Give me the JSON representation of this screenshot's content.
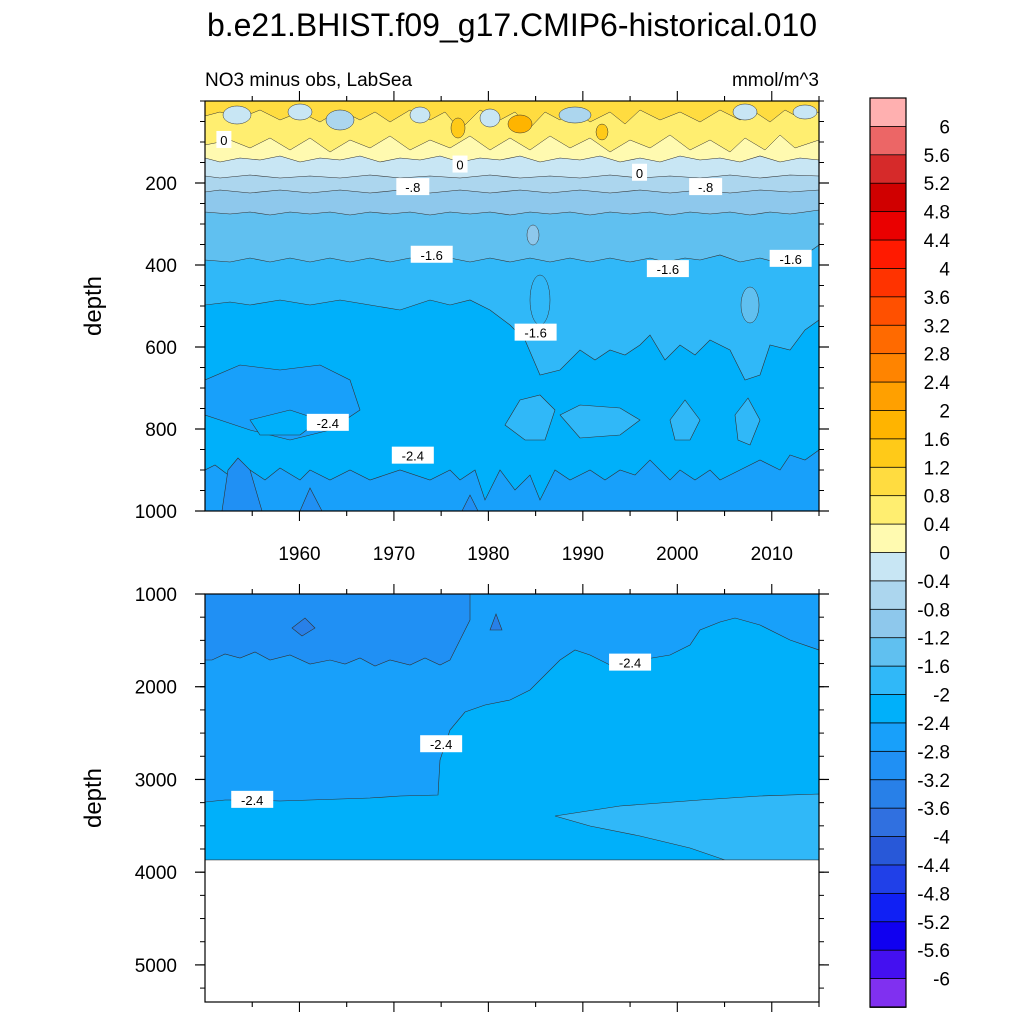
{
  "chart_data": {
    "type": "heatmap",
    "title": "b.e21.BHIST.f09_g17.CMIP6-historical.010",
    "subtitle_left": "NO3 minus obs, LabSea",
    "subtitle_right": "mmol/m^3",
    "ylabel": "depth",
    "x_ticks": [
      "1960",
      "1970",
      "1980",
      "1990",
      "2000",
      "2010"
    ],
    "x_range": [
      1950,
      2015
    ],
    "panels": [
      {
        "ylim": [
          0,
          1000
        ],
        "y_ticks": [
          "200",
          "400",
          "600",
          "800",
          "1000"
        ],
        "contour_labels": [
          {
            "text": "0",
            "x": 1952,
            "y": 95
          },
          {
            "text": "0",
            "x": 1977,
            "y": 155
          },
          {
            "text": "0",
            "x": 1996,
            "y": 175
          },
          {
            "text": "-.8",
            "x": 1972,
            "y": 210
          },
          {
            "text": "-.8",
            "x": 2003,
            "y": 210
          },
          {
            "text": "-1.6",
            "x": 1974,
            "y": 375
          },
          {
            "text": "-1.6",
            "x": 1999,
            "y": 410
          },
          {
            "text": "-1.6",
            "x": 2012,
            "y": 385
          },
          {
            "text": "-1.6",
            "x": 1985,
            "y": 565
          },
          {
            "text": "-2.4",
            "x": 1963,
            "y": 785
          },
          {
            "text": "-2.4",
            "x": 1972,
            "y": 865
          }
        ]
      },
      {
        "ylim": [
          1000,
          5400
        ],
        "y_ticks": [
          "1000",
          "2000",
          "3000",
          "4000",
          "5000"
        ],
        "contour_labels": [
          {
            "text": "-2.4",
            "x": 1995,
            "y": 1740
          },
          {
            "text": "-2.4",
            "x": 1975,
            "y": 2620
          },
          {
            "text": "-2.4",
            "x": 1955,
            "y": 3220
          }
        ]
      }
    ],
    "colorbar": {
      "labels": [
        "6",
        "5.6",
        "5.2",
        "4.8",
        "4.4",
        "4",
        "3.6",
        "3.2",
        "2.8",
        "2.4",
        "2",
        "1.6",
        "1.2",
        "0.8",
        "0.4",
        "0",
        "-0.4",
        "-0.8",
        "-1.2",
        "-1.6",
        "-2",
        "-2.4",
        "-2.8",
        "-3.2",
        "-3.6",
        "-4",
        "-4.4",
        "-4.8",
        "-5.2",
        "-5.6",
        "-6"
      ],
      "colors": [
        "#ffb0b0",
        "#ec6666",
        "#d62a2a",
        "#d00000",
        "#ea0000",
        "#ff1a00",
        "#ff3300",
        "#ff5000",
        "#ff6a00",
        "#ff8400",
        "#ffa000",
        "#ffb400",
        "#ffca18",
        "#ffdc40",
        "#ffee70",
        "#fffab0",
        "#c8e6f4",
        "#acd6ee",
        "#8ec8ec",
        "#60c0f0",
        "#30b8f8",
        "#00b0fa",
        "#18a0fa",
        "#2090f4",
        "#2880e8",
        "#3070e0",
        "#2858d8",
        "#2040e8",
        "#1020f4",
        "#1000f0",
        "#4410f0",
        "#8030f0"
      ]
    }
  }
}
